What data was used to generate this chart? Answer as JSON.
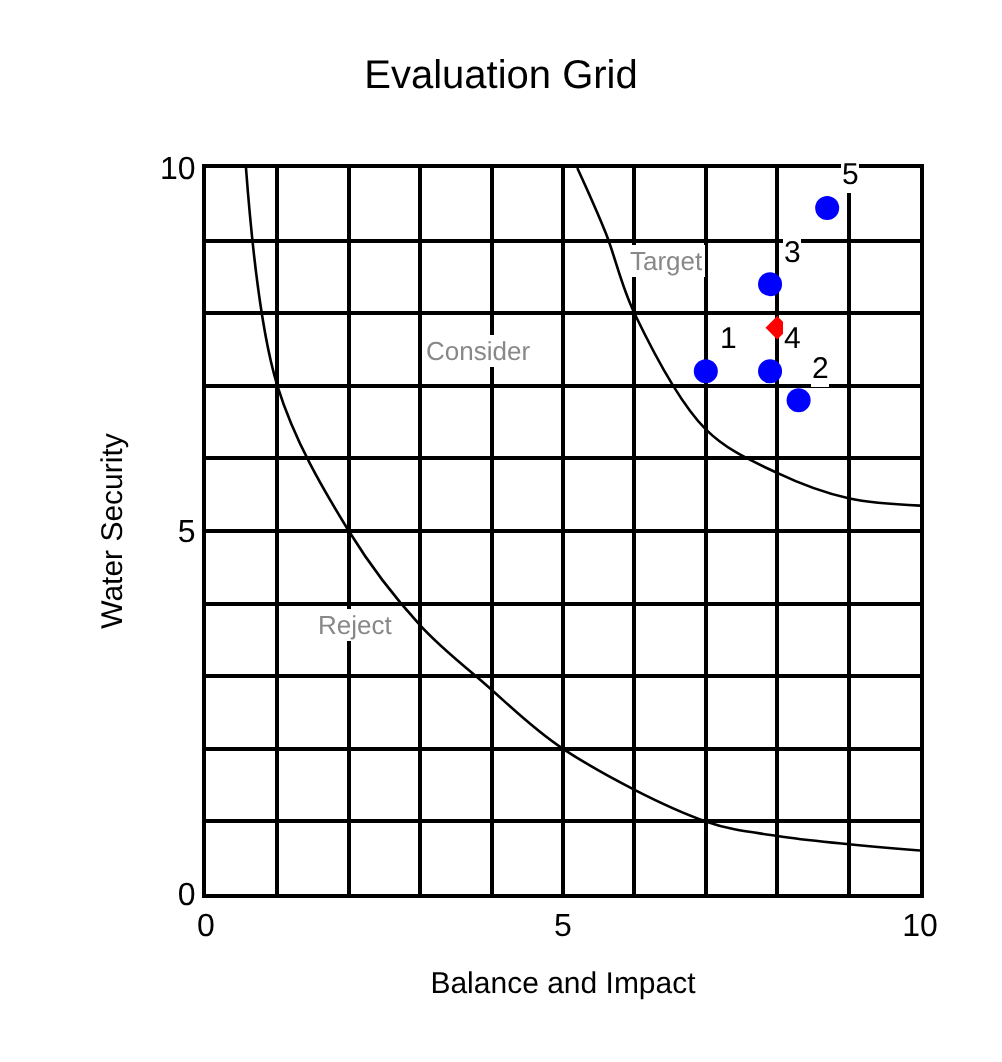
{
  "chart_data": {
    "type": "scatter",
    "title": "Evaluation Grid",
    "xlabel": "Balance and Impact",
    "ylabel": "Water Security",
    "xlim": [
      0,
      10
    ],
    "ylim": [
      0,
      10
    ],
    "xticks": [
      0,
      {
        "value": 1,
        "label": null
      },
      {
        "value": 2,
        "label": null
      },
      {
        "value": 3,
        "label": null
      },
      {
        "value": 4,
        "label": null
      },
      5,
      {
        "value": 6,
        "label": null
      },
      {
        "value": 7,
        "label": null
      },
      {
        "value": 8,
        "label": null
      },
      {
        "value": 9,
        "label": null
      },
      10
    ],
    "yticks": [
      0,
      {
        "value": 1,
        "label": null
      },
      {
        "value": 2,
        "label": null
      },
      {
        "value": 3,
        "label": null
      },
      {
        "value": 4,
        "label": null
      },
      5,
      {
        "value": 6,
        "label": null
      },
      {
        "value": 7,
        "label": null
      },
      {
        "value": 8,
        "label": null
      },
      {
        "value": 9,
        "label": null
      },
      10
    ],
    "grid": true,
    "series": [
      {
        "type": "line",
        "color": "#000000",
        "marker": "none",
        "x": [
          0.56,
          1,
          2,
          3,
          3.9,
          5,
          7,
          8,
          10
        ],
        "values": [
          10,
          7,
          5,
          3.7,
          2.9,
          2,
          1,
          0.8,
          0.6
        ]
      },
      {
        "type": "line",
        "color": "#000000",
        "marker": "none",
        "x": [
          5.2,
          5.6,
          6,
          7,
          8,
          9,
          10
        ],
        "values": [
          10,
          9.1,
          8,
          6.4,
          5.8,
          5.45,
          5.35
        ]
      },
      {
        "color": "#0000ff",
        "marker": "circle",
        "x": [
          7.0,
          8.3,
          7.9,
          7.9,
          8.7
        ],
        "values": [
          7.2,
          6.8,
          8.4,
          7.2,
          9.45
        ]
      },
      {
        "color": "#ff0000",
        "marker": "diamond",
        "x": [
          8.0
        ],
        "values": [
          7.8
        ]
      }
    ],
    "annotations": [
      "Target",
      "Consider",
      "Reject",
      {
        "text": "1",
        "x": 7.0,
        "y": 7.2
      },
      {
        "text": "2",
        "x": 8.3,
        "y": 6.8
      },
      {
        "text": "3",
        "x": 7.9,
        "y": 8.4
      },
      {
        "text": "4",
        "x": 7.9,
        "y": 7.2
      },
      {
        "text": "5",
        "x": 8.7,
        "y": 9.45
      }
    ]
  }
}
